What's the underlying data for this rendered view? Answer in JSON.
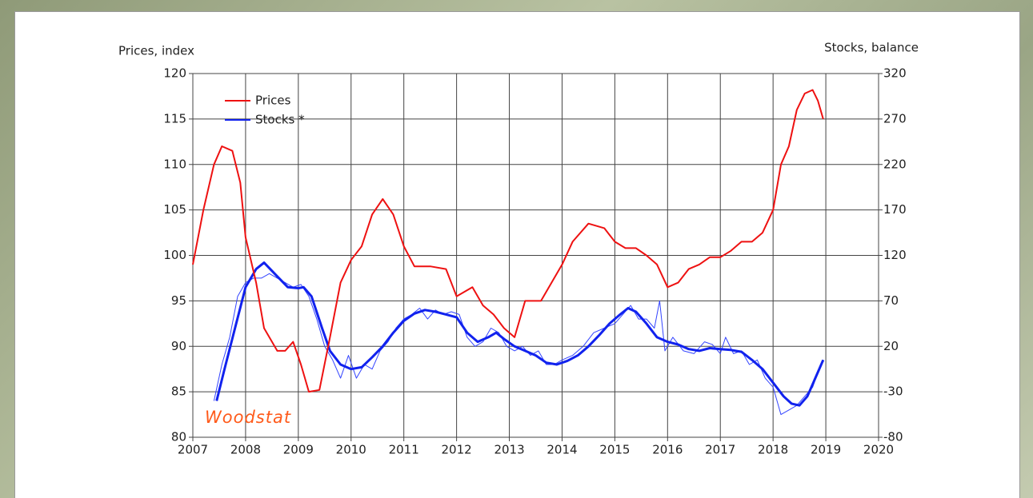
{
  "chart_data": {
    "type": "line",
    "y_label": "Prices, index",
    "y2_label": "Stocks, balance",
    "annotation": "Woodstat",
    "xlim": [
      2007,
      2020
    ],
    "xticks": [
      2007,
      2008,
      2009,
      2010,
      2011,
      2012,
      2013,
      2014,
      2015,
      2016,
      2017,
      2018,
      2019,
      2020
    ],
    "ylim": [
      80,
      120
    ],
    "yticks": [
      80,
      85,
      90,
      95,
      100,
      105,
      110,
      115,
      120
    ],
    "y2lim": [
      -80,
      320
    ],
    "y2ticks": [
      -80,
      -30,
      20,
      70,
      120,
      170,
      220,
      270,
      320
    ],
    "grid": true,
    "legend": "top-left",
    "series": [
      {
        "name": "Prices",
        "color": "#ee1111",
        "linewidth": 2,
        "x": [
          2007.0,
          2007.2,
          2007.4,
          2007.55,
          2007.75,
          2007.9,
          2008.0,
          2008.2,
          2008.35,
          2008.6,
          2008.75,
          2008.9,
          2009.05,
          2009.2,
          2009.4,
          2009.6,
          2009.8,
          2010.0,
          2010.2,
          2010.4,
          2010.6,
          2010.8,
          2011.0,
          2011.2,
          2011.5,
          2011.8,
          2012.0,
          2012.3,
          2012.5,
          2012.7,
          2012.9,
          2013.1,
          2013.3,
          2013.6,
          2013.8,
          2014.0,
          2014.2,
          2014.5,
          2014.8,
          2015.0,
          2015.2,
          2015.4,
          2015.6,
          2015.8,
          2016.0,
          2016.2,
          2016.4,
          2016.6,
          2016.8,
          2017.0,
          2017.2,
          2017.4,
          2017.6,
          2017.8,
          2018.0,
          2018.15,
          2018.3,
          2018.45,
          2018.6,
          2018.75,
          2018.85,
          2018.95
        ],
        "values": [
          99,
          105,
          110,
          112,
          111.5,
          108,
          102,
          97,
          92,
          89.5,
          89.5,
          90.5,
          88,
          85,
          85.2,
          91,
          97,
          99.5,
          101,
          104.5,
          106.2,
          104.5,
          101,
          98.8,
          98.8,
          98.5,
          95.5,
          96.5,
          94.5,
          93.5,
          92,
          91,
          95,
          95,
          97,
          99,
          101.5,
          103.5,
          103,
          101.5,
          100.8,
          100.8,
          100,
          99,
          96.5,
          97,
          98.5,
          99,
          99.8,
          99.8,
          100.5,
          101.5,
          101.5,
          102.5,
          105,
          110,
          112,
          116,
          117.8,
          118.2,
          117,
          115
        ]
      },
      {
        "name": "Stocks *",
        "color": "#1122ee",
        "linewidth": 3,
        "axis": "y2",
        "x": [
          2007.45,
          2007.6,
          2007.8,
          2008.0,
          2008.2,
          2008.35,
          2008.55,
          2008.8,
          2009.0,
          2009.1,
          2009.25,
          2009.45,
          2009.6,
          2009.8,
          2010.0,
          2010.2,
          2010.4,
          2010.6,
          2010.8,
          2011.0,
          2011.2,
          2011.4,
          2011.6,
          2011.8,
          2012.0,
          2012.2,
          2012.4,
          2012.6,
          2012.75,
          2012.9,
          2013.1,
          2013.3,
          2013.5,
          2013.7,
          2013.9,
          2014.1,
          2014.3,
          2014.5,
          2014.7,
          2014.9,
          2015.1,
          2015.25,
          2015.4,
          2015.6,
          2015.8,
          2016.0,
          2016.2,
          2016.4,
          2016.6,
          2016.8,
          2017.0,
          2017.2,
          2017.4,
          2017.6,
          2017.8,
          2018.0,
          2018.2,
          2018.35,
          2018.5,
          2018.65,
          2018.8,
          2018.95
        ],
        "values": [
          -40,
          -5,
          40,
          85,
          105,
          112,
          100,
          85,
          84,
          85,
          75,
          40,
          15,
          0,
          -5,
          -3,
          8,
          20,
          35,
          48,
          56,
          60,
          58,
          55,
          52,
          35,
          25,
          30,
          35,
          28,
          20,
          15,
          10,
          2,
          0,
          4,
          10,
          20,
          32,
          45,
          55,
          62,
          58,
          45,
          30,
          25,
          22,
          17,
          15,
          18,
          17,
          16,
          14,
          5,
          -5,
          -20,
          -35,
          -43,
          -45,
          -35,
          -15,
          5
        ]
      },
      {
        "color": "#3344ff",
        "linewidth": 1,
        "axis": "y2",
        "x": [
          2007.4,
          2007.55,
          2007.7,
          2007.85,
          2008.0,
          2008.15,
          2008.3,
          2008.45,
          2008.6,
          2008.75,
          2008.9,
          2009.05,
          2009.2,
          2009.35,
          2009.5,
          2009.65,
          2009.8,
          2009.95,
          2010.1,
          2010.25,
          2010.4,
          2010.55,
          2010.7,
          2010.85,
          2011.0,
          2011.15,
          2011.3,
          2011.45,
          2011.6,
          2011.75,
          2011.9,
          2012.05,
          2012.2,
          2012.35,
          2012.5,
          2012.65,
          2012.8,
          2012.95,
          2013.1,
          2013.25,
          2013.4,
          2013.55,
          2013.7,
          2013.85,
          2014.0,
          2014.2,
          2014.4,
          2014.6,
          2014.8,
          2015.0,
          2015.15,
          2015.3,
          2015.45,
          2015.6,
          2015.75,
          2015.85,
          2015.95,
          2016.1,
          2016.3,
          2016.5,
          2016.7,
          2016.85,
          2017.0,
          2017.1,
          2017.25,
          2017.4,
          2017.55,
          2017.7,
          2017.85,
          2018.0,
          2018.15,
          2018.3,
          2018.45,
          2018.6,
          2018.75,
          2018.9,
          2018.95
        ],
        "values": [
          -40,
          0,
          30,
          75,
          90,
          95,
          95,
          100,
          95,
          90,
          85,
          88,
          75,
          50,
          20,
          5,
          -15,
          10,
          -15,
          0,
          -5,
          15,
          25,
          40,
          50,
          55,
          62,
          50,
          60,
          55,
          58,
          55,
          30,
          20,
          25,
          40,
          35,
          20,
          15,
          20,
          10,
          15,
          0,
          0,
          5,
          10,
          20,
          35,
          40,
          45,
          55,
          65,
          50,
          50,
          40,
          70,
          15,
          30,
          15,
          12,
          25,
          22,
          12,
          30,
          12,
          15,
          0,
          5,
          -15,
          -25,
          -55,
          -50,
          -45,
          -35,
          -25,
          0,
          5
        ]
      }
    ]
  }
}
